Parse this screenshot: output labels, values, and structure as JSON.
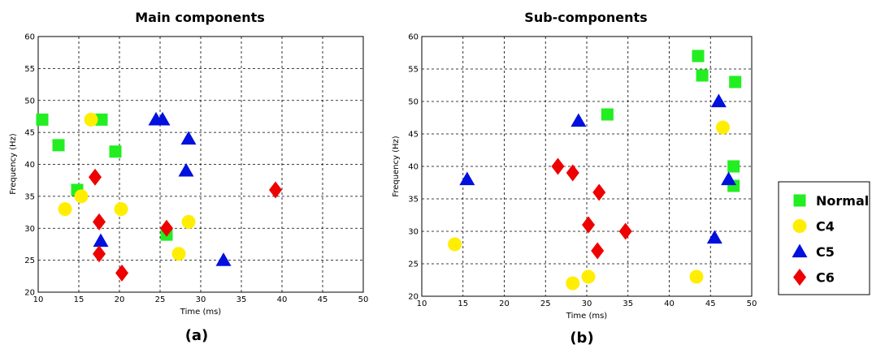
{
  "colors": {
    "Normal": "#22ee22",
    "C4": "#ffee00",
    "C5": "#0010dd",
    "C6": "#ee0000"
  },
  "legend": {
    "items": [
      {
        "label": "Normal",
        "marker": "square"
      },
      {
        "label": "C4",
        "marker": "circle"
      },
      {
        "label": "C5",
        "marker": "triangle"
      },
      {
        "label": "C6",
        "marker": "diamond"
      }
    ]
  },
  "chart_data": [
    {
      "type": "scatter",
      "title": "Main components",
      "xlabel": "Time (ms)",
      "ylabel": "Frequency (Hz)",
      "panel_label": "(a)",
      "xlim": [
        10,
        50
      ],
      "ylim": [
        20,
        60
      ],
      "xticks": [
        10,
        15,
        20,
        25,
        30,
        35,
        40,
        45,
        50
      ],
      "yticks": [
        20,
        25,
        30,
        35,
        40,
        45,
        50,
        55,
        60
      ],
      "grid": true,
      "series": [
        {
          "name": "Normal",
          "marker": "square",
          "points": [
            [
              10.5,
              47
            ],
            [
              12.5,
              43
            ],
            [
              17.8,
              47
            ],
            [
              19.5,
              42
            ],
            [
              14.8,
              36
            ],
            [
              25.8,
              29
            ]
          ]
        },
        {
          "name": "C4",
          "marker": "circle",
          "points": [
            [
              16.5,
              47
            ],
            [
              13.3,
              33
            ],
            [
              15.3,
              35
            ],
            [
              20.2,
              33
            ],
            [
              28.5,
              31
            ],
            [
              27.3,
              26
            ]
          ]
        },
        {
          "name": "C5",
          "marker": "triangle",
          "points": [
            [
              24.5,
              47
            ],
            [
              25.3,
              47
            ],
            [
              28.5,
              44
            ],
            [
              28.2,
              39
            ],
            [
              17.7,
              28
            ],
            [
              32.8,
              25
            ]
          ]
        },
        {
          "name": "C6",
          "marker": "diamond",
          "points": [
            [
              17.0,
              38
            ],
            [
              17.5,
              31
            ],
            [
              17.5,
              26
            ],
            [
              20.3,
              23
            ],
            [
              25.8,
              30
            ],
            [
              39.2,
              36
            ]
          ]
        }
      ]
    },
    {
      "type": "scatter",
      "title": "Sub-components",
      "xlabel": "Time (ms)",
      "ylabel": "Frequency (Hz)",
      "panel_label": "(b)",
      "xlim": [
        10,
        50
      ],
      "ylim": [
        20,
        60
      ],
      "xticks": [
        10,
        15,
        20,
        25,
        30,
        35,
        40,
        45,
        50
      ],
      "yticks": [
        20,
        25,
        30,
        35,
        40,
        45,
        50,
        55,
        60
      ],
      "grid": true,
      "series": [
        {
          "name": "Normal",
          "marker": "square",
          "points": [
            [
              43.5,
              57
            ],
            [
              44.0,
              54
            ],
            [
              48.0,
              53
            ],
            [
              32.5,
              48
            ],
            [
              47.8,
              40
            ],
            [
              47.8,
              37
            ]
          ]
        },
        {
          "name": "C4",
          "marker": "circle",
          "points": [
            [
              14.0,
              28
            ],
            [
              28.3,
              22
            ],
            [
              30.2,
              23
            ],
            [
              43.3,
              23
            ],
            [
              46.5,
              46
            ]
          ]
        },
        {
          "name": "C5",
          "marker": "triangle",
          "points": [
            [
              15.5,
              38
            ],
            [
              29.0,
              47
            ],
            [
              46.0,
              50
            ],
            [
              47.2,
              38
            ],
            [
              45.5,
              29
            ]
          ]
        },
        {
          "name": "C6",
          "marker": "diamond",
          "points": [
            [
              26.5,
              40
            ],
            [
              28.3,
              39
            ],
            [
              31.5,
              36
            ],
            [
              30.2,
              31
            ],
            [
              31.3,
              27
            ],
            [
              34.7,
              30
            ]
          ]
        }
      ]
    }
  ]
}
